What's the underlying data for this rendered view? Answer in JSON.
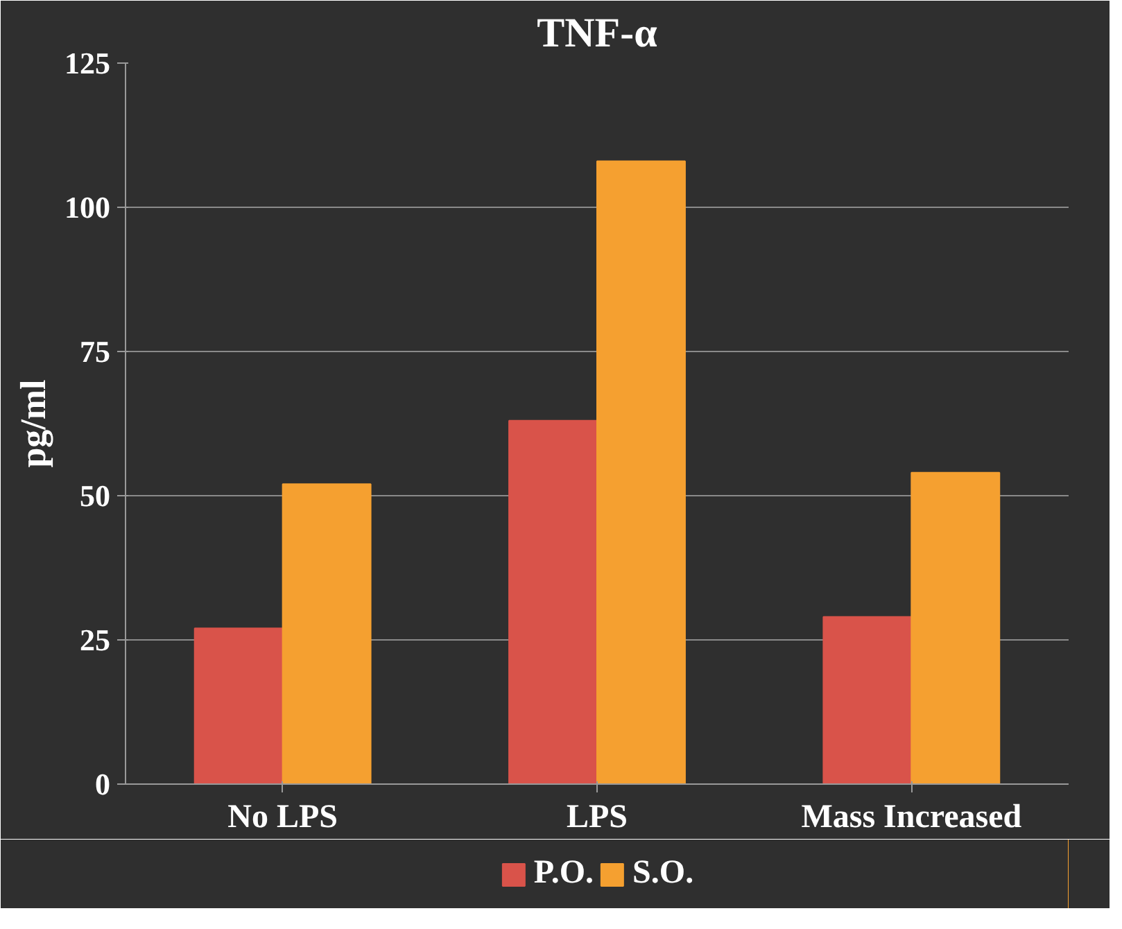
{
  "chart_data": {
    "type": "bar",
    "title": "TNF-α",
    "ylabel": "pg/ml",
    "categories": [
      "No LPS",
      "LPS",
      "Mass Increased"
    ],
    "series": [
      {
        "name": "P.O.",
        "color": "#d9534a",
        "values": [
          27,
          63,
          29
        ]
      },
      {
        "name": "S.O.",
        "color": "#f5a030",
        "values": [
          52,
          108,
          54
        ]
      }
    ],
    "ylim": [
      0,
      125
    ],
    "yticks": [
      0,
      25,
      50,
      75,
      100,
      125
    ],
    "grid": "y",
    "legend": "bottom"
  }
}
